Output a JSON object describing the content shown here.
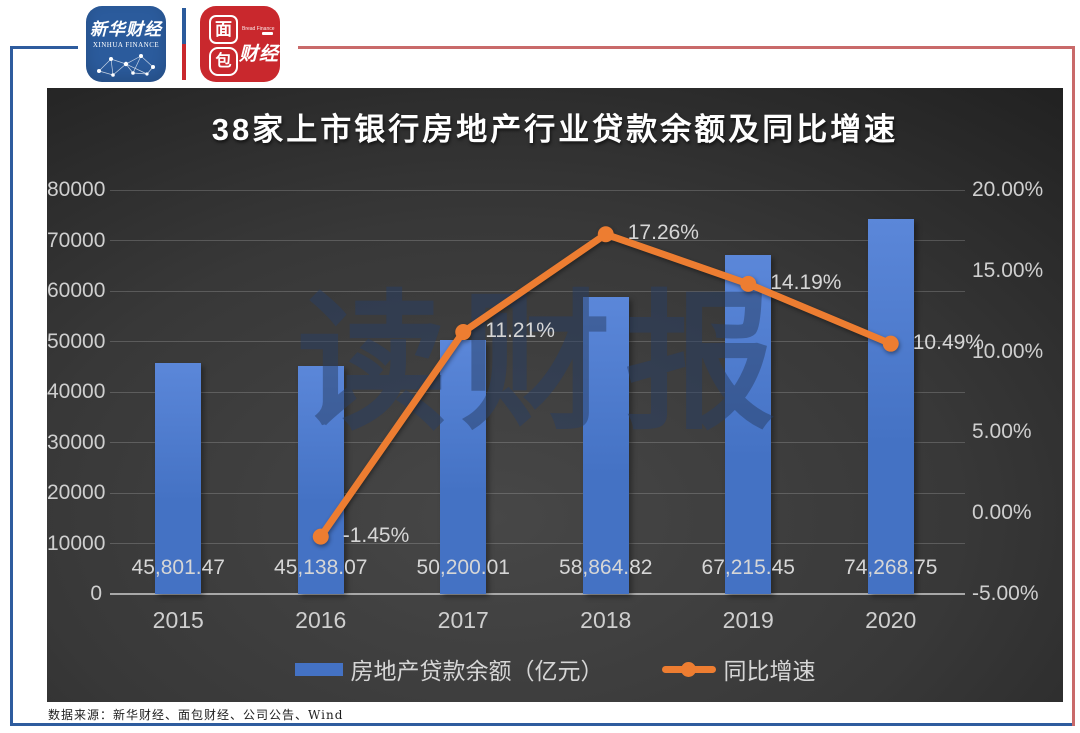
{
  "header": {
    "xinhua_logo": {
      "name_cn": "新华财经",
      "name_en": "XINHUA FINANCE"
    },
    "bread_logo": {
      "char_mian": "面",
      "char_bao": "包",
      "chars_caijing": "财经",
      "subtext": "Bread Finance"
    }
  },
  "chart_data": {
    "type": "bar+line",
    "title": "38家上市银行房地产行业贷款余额及同比增速",
    "categories": [
      "2015",
      "2016",
      "2017",
      "2018",
      "2019",
      "2020"
    ],
    "series": [
      {
        "name": "房地产贷款余额（亿元）",
        "type": "bar",
        "axis": "left",
        "color": "#4472c4",
        "values": [
          45801.47,
          45138.07,
          50200.01,
          58864.82,
          67215.45,
          74268.75
        ],
        "labels": [
          "45,801.47",
          "45,138.07",
          "50,200.01",
          "58,864.82",
          "67,215.45",
          "74,268.75"
        ]
      },
      {
        "name": "同比增速",
        "type": "line",
        "axis": "right",
        "color": "#ed7d31",
        "values": [
          null,
          -1.45,
          11.21,
          17.26,
          14.19,
          10.49
        ],
        "labels": [
          null,
          "-1.45%",
          "11.21%",
          "17.26%",
          "14.19%",
          "10.49%"
        ]
      }
    ],
    "left_axis": {
      "min": 0,
      "max": 80000,
      "step": 10000,
      "ticks": [
        "0",
        "10000",
        "20000",
        "30000",
        "40000",
        "50000",
        "60000",
        "70000",
        "80000"
      ]
    },
    "right_axis": {
      "min": -5,
      "max": 20,
      "step": 5,
      "ticks": [
        "-5.00%",
        "0.00%",
        "5.00%",
        "10.00%",
        "15.00%",
        "20.00%"
      ]
    },
    "grid": true,
    "legend_position": "bottom"
  },
  "watermark": "读财报",
  "footer": {
    "source": "数据来源：新华财经、面包财经、公司公告、Wind"
  },
  "colors": {
    "bar": "#4472c4",
    "line": "#ed7d31",
    "panel_bg_dark": "#232323",
    "panel_bg_light": "#474747",
    "axis_text": "#cfcfcf",
    "frame_blue": "#2e5c9e",
    "frame_red": "#c96a6a",
    "xinhua_blue": "#2b5b9c",
    "bread_red": "#c9282d",
    "watermark_blue": "rgba(40,62,100,0.50)"
  }
}
